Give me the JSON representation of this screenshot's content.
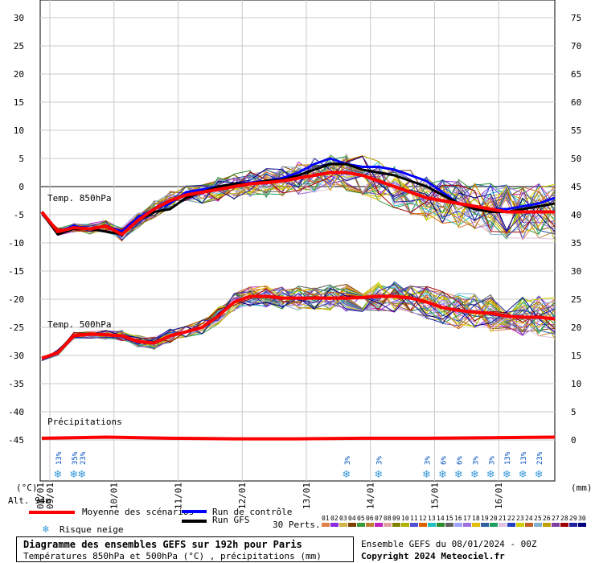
{
  "chart_data": {
    "type": "line",
    "title": "Diagramme des ensembles GEFS sur 192h pour Paris",
    "subtitle": "Températures 850hPa et 500hPa (°C) , précipitations (mm)",
    "run_info": "Ensemble GEFS du 08/01/2024 - 00Z",
    "copyright": "Copyright 2024 Meteociel.fr",
    "left_axis": {
      "label": "(°C)",
      "ylim": [
        -45,
        30
      ],
      "ticks": [
        30,
        25,
        20,
        15,
        10,
        5,
        0,
        -5,
        -10,
        -15,
        -20,
        -25,
        -30,
        -35,
        -40,
        -45
      ]
    },
    "right_axis": {
      "label": "(mm)",
      "ylim": [
        0,
        75
      ],
      "ticks": [
        75,
        70,
        65,
        60,
        55,
        50,
        45,
        40,
        35,
        30,
        25,
        20,
        15,
        10,
        5,
        0
      ]
    },
    "x_ticks": [
      "09/01",
      "10/01",
      "11/01",
      "12/01",
      "13/01",
      "14/01",
      "15/01",
      "16/01"
    ],
    "x_range_hours": [
      0,
      192
    ],
    "altitude": "Alt. 94m",
    "section_labels": {
      "t850": "Temp. 850hPa",
      "t500": "Temp. 500hPa",
      "precip": "Précipitations"
    },
    "legend": {
      "mean": "Moyenne des scénarios",
      "control": "Run de contrôle",
      "gfs": "Run GFS",
      "snow": "Risque neige",
      "perts_label": "30 Perts.",
      "perts_numbers": [
        "01",
        "02",
        "03",
        "04",
        "05",
        "06",
        "07",
        "08",
        "09",
        "10",
        "11",
        "12",
        "13",
        "14",
        "15",
        "16",
        "17",
        "18",
        "19",
        "20",
        "21",
        "22",
        "23",
        "24",
        "25",
        "26",
        "27",
        "28",
        "29",
        "30"
      ],
      "perts_colors": [
        "#e0804a",
        "#8a2be2",
        "#d4b24a",
        "#7b3f00",
        "#3a9a3a",
        "#c08030",
        "#c020c0",
        "#e0a0a0",
        "#808000",
        "#b0b000",
        "#5050d0",
        "#e06000",
        "#20c0c0",
        "#2a8a2a",
        "#606060",
        "#a0a0ff",
        "#a070e0",
        "#e0c000",
        "#3060a0",
        "#20a060",
        "#e0c0e0",
        "#2040c0",
        "#d0d000",
        "#c06020",
        "#80b0d0",
        "#c0a000",
        "#8040a0",
        "#a00000",
        "#2020a0",
        "#000080"
      ],
      "mean_color": "#ff0000",
      "control_color": "#0000ff",
      "gfs_color": "#000000"
    },
    "snow_risk": [
      {
        "hour": 6,
        "pct": "13%"
      },
      {
        "hour": 12,
        "pct": "35%"
      },
      {
        "hour": 15,
        "pct": "23%"
      },
      {
        "hour": 114,
        "pct": "3%"
      },
      {
        "hour": 126,
        "pct": "3%"
      },
      {
        "hour": 144,
        "pct": "3%"
      },
      {
        "hour": 150,
        "pct": "6%"
      },
      {
        "hour": 156,
        "pct": "6%"
      },
      {
        "hour": 162,
        "pct": "3%"
      },
      {
        "hour": 168,
        "pct": "3%"
      },
      {
        "hour": 174,
        "pct": "13%"
      },
      {
        "hour": 180,
        "pct": "13%"
      },
      {
        "hour": 186,
        "pct": "23%"
      }
    ],
    "series": [
      {
        "name": "Moyenne des scénarios",
        "field": "t850",
        "x": [
          0,
          6,
          12,
          18,
          24,
          30,
          36,
          42,
          48,
          54,
          60,
          66,
          72,
          78,
          84,
          90,
          96,
          102,
          108,
          114,
          120,
          126,
          132,
          138,
          144,
          150,
          156,
          162,
          168,
          174,
          180,
          186,
          192
        ],
        "values": [
          -4.5,
          -8,
          -7.3,
          -7.5,
          -7,
          -8.5,
          -6,
          -4,
          -2.5,
          -1.5,
          -1,
          -0.5,
          0,
          0.5,
          0.7,
          1,
          1.5,
          2,
          2.5,
          2.5,
          2,
          1,
          0,
          -1,
          -2,
          -2.5,
          -3,
          -3.5,
          -4,
          -4.5,
          -4.5,
          -4.5,
          -4.5
        ]
      },
      {
        "name": "Run de contrôle",
        "field": "t850",
        "x": [
          0,
          6,
          12,
          18,
          24,
          30,
          36,
          42,
          48,
          54,
          60,
          66,
          72,
          78,
          84,
          90,
          96,
          102,
          108,
          114,
          120,
          126,
          132,
          138,
          144,
          150,
          156,
          162,
          168,
          174,
          180,
          186,
          192
        ],
        "values": [
          -4.5,
          -8,
          -7,
          -7.5,
          -7,
          -8,
          -5.5,
          -4,
          -3,
          -1,
          -0.5,
          0,
          0.5,
          0.7,
          1,
          1.5,
          2.5,
          4,
          5,
          4,
          3.5,
          3.5,
          3,
          2,
          1,
          -1,
          -3,
          -4,
          -4,
          -4,
          -3.5,
          -3,
          -2
        ]
      },
      {
        "name": "Run GFS",
        "field": "t850",
        "x": [
          0,
          6,
          12,
          18,
          24,
          30,
          36,
          42,
          48,
          54,
          60,
          66,
          72,
          78,
          84,
          90,
          96,
          102,
          108,
          114,
          120,
          126,
          132,
          138,
          144,
          150,
          156,
          162,
          168,
          174,
          180,
          186,
          192
        ],
        "values": [
          -4.5,
          -8.5,
          -7.5,
          -7.5,
          -8,
          -8.5,
          -6,
          -4.5,
          -4,
          -2,
          -1,
          0,
          0.5,
          0.5,
          1,
          1.2,
          2,
          3,
          4,
          4,
          3,
          2.5,
          2,
          1,
          0,
          -1.5,
          -3,
          -4,
          -4.5,
          -4.5,
          -4,
          -3.5,
          -3
        ]
      },
      {
        "name": "Moyenne des scénarios",
        "field": "t500",
        "x": [
          0,
          6,
          12,
          18,
          24,
          30,
          36,
          42,
          48,
          54,
          60,
          66,
          72,
          78,
          84,
          90,
          96,
          102,
          108,
          114,
          120,
          126,
          132,
          138,
          144,
          150,
          156,
          162,
          168,
          174,
          180,
          186,
          192
        ],
        "values": [
          -30.5,
          -29.5,
          -26.5,
          -26.2,
          -26.3,
          -26.5,
          -27.5,
          -27.8,
          -26.5,
          -25.8,
          -25,
          -23,
          -20.5,
          -19.5,
          -19.5,
          -19.8,
          -19.8,
          -19.8,
          -19.8,
          -19.8,
          -19.7,
          -19.5,
          -19.5,
          -19.8,
          -20.5,
          -21.5,
          -22,
          -22.3,
          -22.5,
          -23,
          -23.2,
          -23.2,
          -23.5
        ]
      },
      {
        "name": "Moyenne des scénarios",
        "field": "precip",
        "x": [
          0,
          24,
          48,
          72,
          96,
          120,
          144,
          168,
          192
        ],
        "values": [
          0.3,
          0.5,
          0.3,
          0.2,
          0.2,
          0.3,
          0.3,
          0.4,
          0.5
        ]
      }
    ]
  }
}
